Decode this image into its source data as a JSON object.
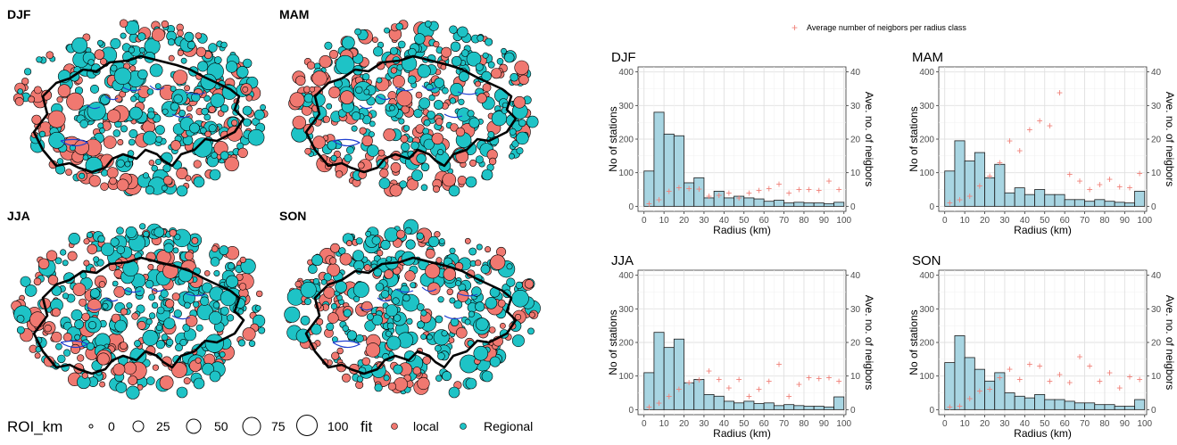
{
  "maps": {
    "panels": [
      {
        "season": "DJF"
      },
      {
        "season": "MAM"
      },
      {
        "season": "JJA"
      },
      {
        "season": "SON"
      }
    ],
    "legend": {
      "size_title": "ROI_km",
      "size_values": [
        "0",
        "25",
        "50",
        "75",
        "100"
      ],
      "fill_title": "fit",
      "fill_items": [
        {
          "label": "local",
          "color": "#f07870"
        },
        {
          "label": "Regional",
          "color": "#1ec3c6"
        }
      ]
    },
    "colors": {
      "local": "#f07870",
      "regional": "#1ec3c6",
      "border": "#000000",
      "lakes": "#1f3fd0"
    }
  },
  "legend_top": {
    "label": "Average number of neigbors per radius class",
    "color": "#f08078"
  },
  "chart_data": [
    {
      "type": "bar",
      "title": "DJF",
      "xlabel": "Radius (km)",
      "ylabel": "No of stations",
      "y2label": "Ave. no. of neigbors",
      "xlim": [
        -3,
        101
      ],
      "ylim": [
        -15,
        415
      ],
      "y2lim": [
        -1.5,
        41.5
      ],
      "xticks": [
        0,
        10,
        20,
        30,
        40,
        50,
        60,
        70,
        80,
        90,
        100
      ],
      "yticks": [
        0,
        100,
        200,
        300,
        400
      ],
      "y2ticks": [
        0,
        10,
        20,
        30,
        40
      ],
      "bin_width": 5,
      "bins": [
        0,
        5,
        10,
        15,
        20,
        25,
        30,
        35,
        40,
        45,
        50,
        55,
        60,
        65,
        70,
        75,
        80,
        85,
        90,
        95
      ],
      "values": [
        105,
        280,
        215,
        210,
        70,
        85,
        25,
        45,
        25,
        30,
        25,
        22,
        15,
        18,
        10,
        12,
        10,
        10,
        8,
        12
      ],
      "series": [
        {
          "name": "Average number of neigbors per radius class",
          "x": [
            2.5,
            7.5,
            12.5,
            17.5,
            22.5,
            27.5,
            32.5,
            37.5,
            42.5,
            47.5,
            52.5,
            57.5,
            62.5,
            67.5,
            72.5,
            77.5,
            82.5,
            87.5,
            92.5,
            97.5
          ],
          "y": [
            0.8,
            2,
            4.5,
            5.5,
            5.3,
            5.2,
            3,
            3.3,
            4,
            2.5,
            4,
            4.8,
            5.3,
            6.6,
            4,
            5,
            5,
            4.8,
            7.5,
            5
          ]
        }
      ],
      "grid": true
    },
    {
      "type": "bar",
      "title": "MAM",
      "xlabel": "Radius (km)",
      "ylabel": "No of stations",
      "y2label": "Ave. no. of neigbors",
      "xlim": [
        -3,
        101
      ],
      "ylim": [
        -15,
        415
      ],
      "y2lim": [
        -1.5,
        41.5
      ],
      "xticks": [
        0,
        10,
        20,
        30,
        40,
        50,
        60,
        70,
        80,
        90,
        100
      ],
      "yticks": [
        0,
        100,
        200,
        300,
        400
      ],
      "y2ticks": [
        0,
        10,
        20,
        30,
        40
      ],
      "bin_width": 5,
      "bins": [
        0,
        5,
        10,
        15,
        20,
        25,
        30,
        35,
        40,
        45,
        50,
        55,
        60,
        65,
        70,
        75,
        80,
        85,
        90,
        95
      ],
      "values": [
        105,
        195,
        135,
        160,
        85,
        125,
        40,
        55,
        35,
        50,
        35,
        35,
        20,
        20,
        15,
        20,
        15,
        12,
        10,
        45
      ],
      "series": [
        {
          "name": "Average number of neigbors per radius class",
          "x": [
            2.5,
            7.5,
            12.5,
            17.5,
            22.5,
            27.5,
            32.5,
            37.5,
            42.5,
            47.5,
            52.5,
            57.5,
            62.5,
            67.5,
            72.5,
            77.5,
            82.5,
            87.5,
            92.5,
            97.5
          ],
          "y": [
            1,
            2,
            3,
            6,
            9,
            13,
            19.5,
            16.5,
            22.8,
            25.5,
            24,
            33.8,
            9.5,
            7.5,
            5,
            6.5,
            8,
            5.8,
            5.5,
            9.8
          ]
        }
      ],
      "grid": true
    },
    {
      "type": "bar",
      "title": "JJA",
      "xlabel": "Radius (km)",
      "ylabel": "No of stations",
      "y2label": "Ave. no. of neigbors",
      "xlim": [
        -3,
        101
      ],
      "ylim": [
        -15,
        415
      ],
      "y2lim": [
        -1.5,
        41.5
      ],
      "xticks": [
        0,
        10,
        20,
        30,
        40,
        50,
        60,
        70,
        80,
        90,
        100
      ],
      "yticks": [
        0,
        100,
        200,
        300,
        400
      ],
      "y2ticks": [
        0,
        10,
        20,
        30,
        40
      ],
      "bin_width": 5,
      "bins": [
        0,
        5,
        10,
        15,
        20,
        25,
        30,
        35,
        40,
        45,
        50,
        55,
        60,
        65,
        70,
        75,
        80,
        85,
        90,
        95
      ],
      "values": [
        110,
        230,
        185,
        210,
        80,
        90,
        45,
        40,
        25,
        20,
        25,
        18,
        20,
        12,
        15,
        12,
        10,
        10,
        8,
        38
      ],
      "series": [
        {
          "name": "Average number of neigbors per radius class",
          "x": [
            2.5,
            7.5,
            12.5,
            17.5,
            22.5,
            27.5,
            32.5,
            37.5,
            42.5,
            47.5,
            52.5,
            57.5,
            62.5,
            67.5,
            72.5,
            77.5,
            82.5,
            87.5,
            92.5,
            97.5
          ],
          "y": [
            0.8,
            2,
            4,
            6,
            8,
            8.8,
            11.5,
            9,
            6.5,
            9,
            4,
            6,
            8.5,
            13.5,
            4,
            7.5,
            9.5,
            9.3,
            9.5,
            8.5
          ]
        }
      ],
      "grid": true
    },
    {
      "type": "bar",
      "title": "SON",
      "xlabel": "Radius (km)",
      "ylabel": "No of stations",
      "y2label": "Ave. no. of neigbors",
      "xlim": [
        -3,
        101
      ],
      "ylim": [
        -15,
        415
      ],
      "y2lim": [
        -1.5,
        41.5
      ],
      "xticks": [
        0,
        10,
        20,
        30,
        40,
        50,
        60,
        70,
        80,
        90,
        100
      ],
      "yticks": [
        0,
        100,
        200,
        300,
        400
      ],
      "y2ticks": [
        0,
        10,
        20,
        30,
        40
      ],
      "bin_width": 5,
      "bins": [
        0,
        5,
        10,
        15,
        20,
        25,
        30,
        35,
        40,
        45,
        50,
        55,
        60,
        65,
        70,
        75,
        80,
        85,
        90,
        95
      ],
      "values": [
        140,
        220,
        155,
        120,
        85,
        110,
        50,
        40,
        35,
        45,
        30,
        30,
        25,
        20,
        20,
        15,
        15,
        10,
        10,
        30
      ],
      "series": [
        {
          "name": "Average number of neigbors per radius class",
          "x": [
            2.5,
            7.5,
            12.5,
            17.5,
            22.5,
            27.5,
            32.5,
            37.5,
            42.5,
            47.5,
            52.5,
            57.5,
            62.5,
            67.5,
            72.5,
            77.5,
            82.5,
            87.5,
            92.5,
            97.5
          ],
          "y": [
            0.8,
            1,
            3.3,
            5.5,
            6,
            9.5,
            12,
            9,
            13.5,
            13,
            8.5,
            10.5,
            8,
            15.8,
            13,
            8.5,
            11,
            6.5,
            9.8,
            9
          ]
        }
      ],
      "grid": true
    }
  ]
}
